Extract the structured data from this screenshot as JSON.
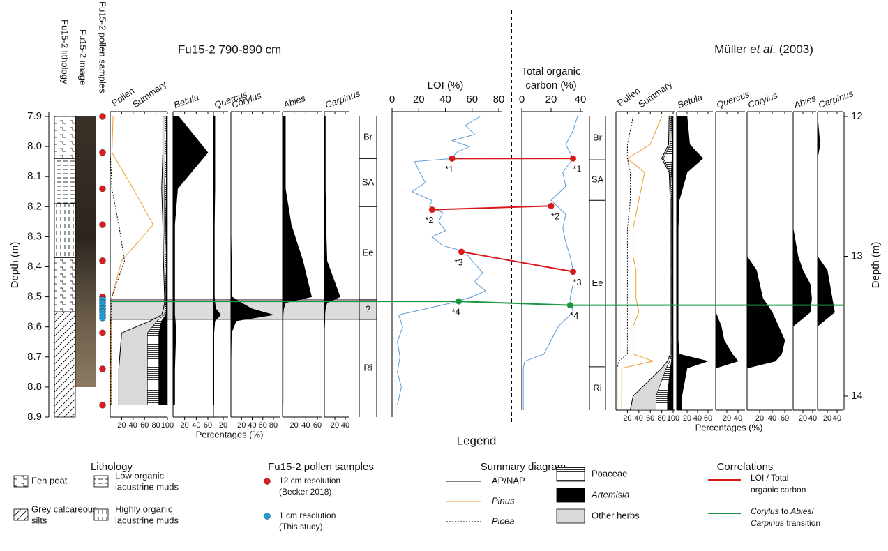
{
  "title_left": "Fu15-2 790-890 cm",
  "title_right": [
    {
      "t": "Müller "
    },
    {
      "t": "et al",
      "i": true
    },
    {
      "t": ". (2003)"
    }
  ],
  "column_labels": [
    "Fu15-2 lithology",
    "Fu15-2 image",
    "Fu15-2 pollen samples"
  ],
  "chart_data": [
    {
      "type": "depth-axis",
      "label": "Depth (m)",
      "ylim": [
        7.9,
        8.9
      ],
      "yticks": [
        7.9,
        {
          "value": 8,
          "label": "8.0"
        },
        8.1,
        8.2,
        8.3,
        8.4,
        8.5,
        8.6,
        8.7,
        8.8,
        8.9
      ]
    },
    {
      "type": "depth-axis",
      "label": "Depth (m)",
      "ylim": [
        12,
        14.1
      ],
      "yticks": [
        12,
        13,
        14
      ]
    },
    {
      "type": "summary",
      "header": [
        "Pollen",
        "Summary"
      ],
      "xlabel": "Percentages (%)",
      "xlim": [
        0,
        100
      ],
      "xticks": [
        20,
        40,
        60,
        80,
        100
      ],
      "depths": [
        7.9,
        8.02,
        8.14,
        8.26,
        8.38,
        8.5,
        8.52,
        8.54,
        8.56,
        8.58,
        8.62,
        8.74,
        8.86
      ],
      "series": [
        {
          "name": "AP/NAP",
          "kind": "line",
          "color": "#000000",
          "values": [
            92,
            92,
            90,
            92,
            93,
            95,
            95,
            93,
            90,
            70,
            20,
            15,
            15
          ]
        },
        {
          "name": "Other herbs",
          "kind": "fill",
          "color": "#d9d9d9",
          "values": [
            4,
            4,
            5,
            3,
            3,
            2,
            2,
            3,
            5,
            12,
            45,
            50,
            50
          ]
        },
        {
          "name": "Poaceae",
          "kind": "hatch",
          "color": "#000000",
          "values": [
            2,
            2,
            3,
            2,
            2,
            1,
            1,
            2,
            2,
            8,
            20,
            20,
            20
          ]
        },
        {
          "name": "Artemisia",
          "italic": true,
          "kind": "fill",
          "color": "#000000",
          "values": [
            2,
            2,
            2,
            3,
            2,
            2,
            2,
            2,
            3,
            10,
            15,
            15,
            15
          ]
        },
        {
          "name": "Pinus",
          "italic": true,
          "kind": "line",
          "color": "#f39a2b",
          "values": [
            5,
            3,
            40,
            75,
            20,
            3,
            3,
            3,
            3,
            2,
            2,
            2,
            2
          ]
        },
        {
          "name": "Picea",
          "italic": true,
          "kind": "dotted",
          "color": "#000000",
          "values": [
            0,
            0,
            3,
            15,
            25,
            3,
            2,
            2,
            2,
            1,
            1,
            1,
            1
          ]
        }
      ]
    },
    {
      "type": "area",
      "header": "Betula",
      "xlim": [
        0,
        60
      ],
      "xticks": [
        20,
        40,
        60
      ],
      "depths": [
        7.9,
        8.02,
        8.14,
        8.26,
        8.38,
        8.5,
        8.52,
        8.54,
        8.56,
        8.58,
        8.62,
        8.74,
        8.86
      ],
      "values": [
        10,
        60,
        8,
        3,
        3,
        3,
        3,
        3,
        3,
        4,
        5,
        3,
        3
      ]
    },
    {
      "type": "area",
      "header": "Quercus",
      "xlim": [
        0,
        20
      ],
      "xticks": [
        20
      ],
      "depths": [
        7.9,
        8.02,
        8.14,
        8.26,
        8.38,
        8.5,
        8.52,
        8.54,
        8.56,
        8.58,
        8.62,
        8.74,
        8.86
      ],
      "values": [
        3,
        3,
        3,
        2,
        2,
        2,
        3,
        5,
        15,
        3,
        1,
        1,
        1
      ]
    },
    {
      "type": "area",
      "header": "Corylus",
      "xlim": [
        0,
        80
      ],
      "xticks": [
        20,
        40,
        60,
        80
      ],
      "depths": [
        7.9,
        8.02,
        8.14,
        8.26,
        8.38,
        8.5,
        8.52,
        8.54,
        8.56,
        8.58,
        8.62,
        8.74,
        8.86
      ],
      "values": [
        0,
        0,
        0,
        0,
        1,
        2,
        20,
        40,
        80,
        10,
        1,
        0,
        0
      ]
    },
    {
      "type": "area",
      "header": "Abies",
      "xlim": [
        0,
        60
      ],
      "xticks": [
        20,
        40,
        60
      ],
      "depths": [
        7.9,
        8.02,
        8.14,
        8.26,
        8.38,
        8.5,
        8.52,
        8.54,
        8.56,
        8.58,
        8.62,
        8.74,
        8.86
      ],
      "values": [
        5,
        5,
        5,
        15,
        35,
        50,
        5,
        2,
        1,
        1,
        1,
        1,
        1
      ]
    },
    {
      "type": "area",
      "header": "Carpinus",
      "xlim": [
        0,
        40
      ],
      "xticks": [
        20,
        40
      ],
      "depths": [
        7.9,
        8.02,
        8.14,
        8.26,
        8.38,
        8.5,
        8.52,
        8.54,
        8.56,
        8.58,
        8.62,
        8.74,
        8.86
      ],
      "values": [
        2,
        2,
        2,
        3,
        5,
        30,
        5,
        2,
        1,
        1,
        0,
        0,
        0
      ]
    },
    {
      "type": "zones",
      "boundaries": [
        8.04,
        8.2,
        8.51,
        8.575
      ],
      "labels": [
        "Br",
        "SA",
        "Ee",
        "?",
        "Ri"
      ]
    },
    {
      "type": "line",
      "title": "LOI (%)",
      "color": "#5b9bd5",
      "xlim": [
        0,
        80
      ],
      "xticks": [
        0,
        20,
        40,
        60,
        80
      ],
      "depths": [
        7.9,
        7.93,
        7.96,
        7.98,
        8.0,
        8.02,
        8.04,
        8.05,
        8.08,
        8.12,
        8.15,
        8.18,
        8.2,
        8.22,
        8.25,
        8.28,
        8.3,
        8.33,
        8.35,
        8.38,
        8.42,
        8.45,
        8.48,
        8.5,
        8.52,
        8.54,
        8.56,
        8.6,
        8.65,
        8.7,
        8.75,
        8.8,
        8.86
      ],
      "values": [
        66,
        55,
        62,
        45,
        58,
        48,
        45,
        17,
        20,
        25,
        15,
        30,
        28,
        38,
        35,
        40,
        30,
        38,
        55,
        60,
        68,
        62,
        70,
        60,
        45,
        25,
        5,
        8,
        4,
        6,
        4,
        7,
        4
      ]
    },
    {
      "type": "line",
      "title": [
        "Total organic",
        "carbon (%)"
      ],
      "color": "#5b9bd5",
      "xlim": [
        0,
        40
      ],
      "xticks": [
        0,
        20,
        40
      ],
      "depths": [
        12.0,
        12.1,
        12.2,
        12.3,
        12.4,
        12.5,
        12.6,
        12.7,
        12.8,
        12.9,
        13.0,
        13.1,
        13.2,
        13.3,
        13.4,
        13.5,
        13.6,
        13.7,
        13.75,
        13.8,
        14.0,
        14.1
      ],
      "values": [
        38,
        35,
        30,
        35,
        28,
        30,
        20,
        30,
        28,
        30,
        33,
        35,
        35,
        33,
        35,
        25,
        20,
        15,
        2,
        1,
        1,
        1
      ]
    },
    {
      "type": "zones",
      "boundaries": [
        12.31,
        12.6,
        13.79
      ],
      "labels": [
        "Br",
        "SA",
        "Ee",
        "Ri"
      ]
    },
    {
      "type": "summary",
      "header": [
        "Pollen",
        "Summary"
      ],
      "xlabel": "Percentages (%)",
      "xlim": [
        0,
        100
      ],
      "xticks": [
        20,
        40,
        60,
        80,
        100
      ],
      "depths": [
        12.0,
        12.2,
        12.3,
        12.4,
        12.6,
        12.8,
        13.0,
        13.1,
        13.2,
        13.3,
        13.4,
        13.5,
        13.6,
        13.7,
        13.75,
        13.8,
        14.0,
        14.1
      ],
      "series": [
        {
          "values": [
            93,
            92,
            80,
            93,
            95,
            95,
            95,
            95,
            95,
            95,
            95,
            95,
            95,
            95,
            90,
            80,
            30,
            25
          ]
        },
        {
          "values": [
            2,
            3,
            3,
            2,
            2,
            2,
            2,
            2,
            2,
            2,
            2,
            2,
            2,
            2,
            4,
            8,
            40,
            45
          ]
        },
        {
          "values": [
            2,
            3,
            15,
            2,
            2,
            1,
            1,
            1,
            1,
            1,
            1,
            1,
            1,
            1,
            3,
            7,
            20,
            20
          ]
        },
        {
          "values": [
            3,
            2,
            2,
            3,
            1,
            2,
            2,
            2,
            2,
            2,
            2,
            2,
            2,
            2,
            3,
            5,
            10,
            10
          ]
        },
        {
          "values": [
            80,
            60,
            20,
            50,
            40,
            30,
            30,
            35,
            35,
            35,
            40,
            30,
            30,
            30,
            65,
            10,
            10,
            10
          ]
        },
        {
          "values": [
            30,
            20,
            20,
            25,
            25,
            20,
            20,
            20,
            20,
            20,
            20,
            20,
            20,
            20,
            5,
            2,
            2,
            2
          ]
        }
      ]
    },
    {
      "type": "area",
      "header": "Betula",
      "xlim": [
        0,
        60
      ],
      "xticks": [
        20,
        40,
        60
      ],
      "depths": [
        12.0,
        12.2,
        12.3,
        12.4,
        12.6,
        12.8,
        13.0,
        13.1,
        13.2,
        13.3,
        13.4,
        13.5,
        13.6,
        13.7,
        13.75,
        13.8,
        14.0,
        14.1
      ],
      "values": [
        20,
        25,
        50,
        20,
        5,
        3,
        3,
        3,
        3,
        3,
        3,
        3,
        3,
        5,
        60,
        20,
        10,
        10
      ]
    },
    {
      "type": "area",
      "header": "Quercus",
      "xlim": [
        0,
        40
      ],
      "xticks": [
        20,
        40
      ],
      "depths": [
        12.0,
        12.2,
        12.3,
        12.4,
        12.6,
        12.8,
        13.0,
        13.1,
        13.2,
        13.3,
        13.4,
        13.5,
        13.6,
        13.7,
        13.75,
        13.8,
        14.0,
        14.1
      ],
      "values": [
        0,
        0,
        0,
        0,
        0,
        0,
        0,
        0,
        0,
        0,
        0,
        10,
        15,
        30,
        40,
        0,
        0,
        0
      ]
    },
    {
      "type": "area",
      "header": "Corylus",
      "xlim": [
        0,
        60
      ],
      "xticks": [
        20,
        40,
        60
      ],
      "depths": [
        12.0,
        12.2,
        12.3,
        12.4,
        12.6,
        12.8,
        13.0,
        13.1,
        13.2,
        13.3,
        13.4,
        13.5,
        13.6,
        13.7,
        13.75,
        13.8,
        14.0,
        14.1
      ],
      "values": [
        0,
        0,
        0,
        0,
        0,
        0,
        0,
        15,
        20,
        25,
        40,
        50,
        60,
        55,
        45,
        0,
        0,
        0
      ]
    },
    {
      "type": "area",
      "header": "Abies",
      "xlim": [
        0,
        40
      ],
      "xticks": [
        20,
        40
      ],
      "depths": [
        12.0,
        12.2,
        12.3,
        12.4,
        12.6,
        12.8,
        13.0,
        13.1,
        13.2,
        13.3,
        13.4,
        13.5,
        13.6,
        13.7,
        13.75,
        13.8,
        14.0,
        14.1
      ],
      "values": [
        0,
        0,
        0,
        0,
        0,
        0,
        10,
        20,
        35,
        38,
        35,
        0,
        0,
        0,
        0,
        0,
        0,
        0
      ]
    },
    {
      "type": "area",
      "header": "Carpinus",
      "xlim": [
        0,
        40
      ],
      "xticks": [
        20,
        40
      ],
      "depths": [
        12.0,
        12.2,
        12.3,
        12.4,
        12.6,
        12.8,
        13.0,
        13.1,
        13.2,
        13.3,
        13.4,
        13.5,
        13.6,
        13.7,
        13.75,
        13.8,
        14.0,
        14.1
      ],
      "values": [
        0,
        5,
        0,
        0,
        0,
        0,
        0,
        20,
        25,
        30,
        35,
        0,
        0,
        0,
        0,
        0,
        0,
        0
      ]
    },
    {
      "type": "samples",
      "series": [
        {
          "lines": [
            "12 cm resolution",
            "(Becker 2018)"
          ],
          "color": "#e31a1c",
          "depths": [
            7.9,
            8.02,
            8.14,
            8.26,
            8.38,
            8.5,
            8.62,
            8.74,
            8.86
          ]
        },
        {
          "lines": [
            "1 cm resolution",
            "(This study)"
          ],
          "color": "#1f9bd7",
          "depths": [
            8.51,
            8.52,
            8.53,
            8.54,
            8.55,
            8.56,
            8.57
          ]
        }
      ]
    },
    {
      "type": "lithology",
      "items": [
        {
          "lines": [
            "Fen peat"
          ],
          "intervals": [
            [
              7.9,
              8.04
            ],
            [
              8.37,
              8.55
            ]
          ]
        },
        {
          "lines": [
            "Low organic",
            "lacustrine muds"
          ],
          "intervals": [
            [
              8.04,
              8.19
            ]
          ]
        },
        {
          "lines": [
            "Grey calcareous",
            "silts"
          ],
          "intervals": [
            [
              8.55,
              8.9
            ]
          ]
        },
        {
          "lines": [
            "Highly organic",
            "lacustrine muds"
          ],
          "intervals": [
            [
              8.19,
              8.37
            ]
          ]
        }
      ]
    },
    {
      "type": "correlation",
      "groups": [
        {
          "color": "#d7191c",
          "label_lines": [
            [
              {
                "t": "LOI / Total"
              }
            ],
            [
              {
                "t": "organic carbon"
              }
            ]
          ],
          "ties": [
            {
              "label": "*1",
              "loi": [
                45,
                8.04
              ],
              "toc": [
                35,
                12.3
              ]
            },
            {
              "label": "*2",
              "loi": [
                30,
                8.21
              ],
              "toc": [
                20,
                12.64
              ]
            },
            {
              "label": "*3",
              "loi": [
                52,
                8.35
              ],
              "toc": [
                35,
                13.11
              ]
            }
          ]
        },
        {
          "color": "#1a9641",
          "extend": true,
          "label_lines": [
            [
              {
                "t": "Corylus",
                "i": true
              },
              {
                "t": " to "
              },
              {
                "t": "Abies",
                "i": true
              },
              {
                "t": "/"
              }
            ],
            [
              {
                "t": "Carpinus",
                "i": true
              },
              {
                "t": " transition"
              }
            ]
          ],
          "ties": [
            {
              "label": "*4",
              "loi": [
                50,
                8.515
              ],
              "toc": [
                33,
                13.35
              ]
            }
          ]
        }
      ]
    }
  ],
  "legend": {
    "title": "Legend",
    "groups": [
      "Lithology",
      "Fu15-2 pollen samples",
      "Summary diagram",
      "Correlations"
    ]
  }
}
